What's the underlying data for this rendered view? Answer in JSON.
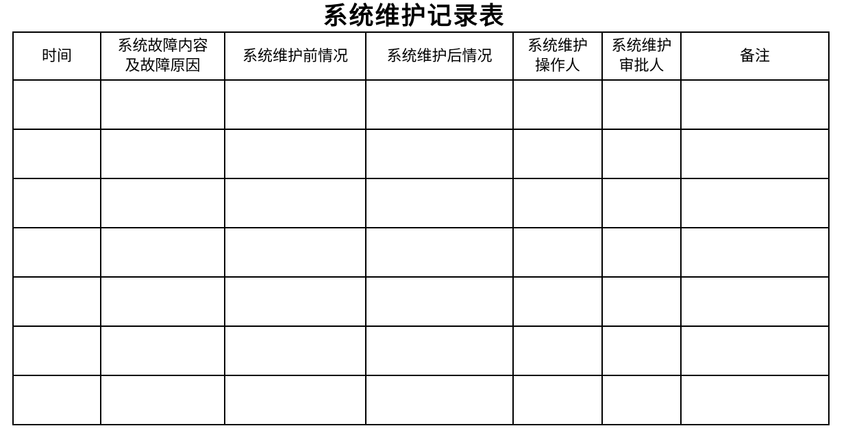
{
  "page": {
    "title": "系统维护记录表",
    "background": "#ffffff"
  },
  "table": {
    "columns": [
      {
        "label": "时间"
      },
      {
        "label": "系统故障内容\n及故障原因"
      },
      {
        "label": "系统维护前情况"
      },
      {
        "label": "系统维护后情况"
      },
      {
        "label": "系统维护\n操作人"
      },
      {
        "label": "系统维护\n审批人"
      },
      {
        "label": "备注"
      }
    ],
    "empty_rows": 7,
    "cells_empty": true
  },
  "colors": {
    "text": "#000000",
    "border": "#000000",
    "background": "#ffffff"
  }
}
